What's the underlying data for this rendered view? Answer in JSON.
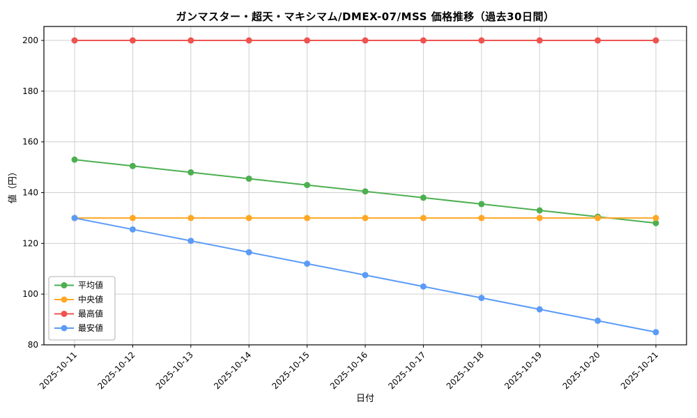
{
  "chart": {
    "title": "ガンマスター・超天・マキシマム/DMEX-07/MSS 価格推移（過去30日間）",
    "xlabel": "日付",
    "ylabel": "値（円）"
  },
  "chart_data": {
    "type": "line",
    "title": "ガンマスター・超天・マキシマム/DMEX-07/MSS 価格推移（過去30日間）",
    "xlabel": "日付",
    "ylabel": "値（円）",
    "categories": [
      "2025-10-11",
      "2025-10-12",
      "2025-10-13",
      "2025-10-14",
      "2025-10-15",
      "2025-10-16",
      "2025-10-17",
      "2025-10-18",
      "2025-10-19",
      "2025-10-20",
      "2025-10-21"
    ],
    "series": [
      {
        "name": "平均値",
        "color": "#4caf50",
        "values": [
          153,
          150.5,
          148,
          145.5,
          143,
          140.5,
          138,
          135.5,
          133,
          130.5,
          128
        ]
      },
      {
        "name": "中央値",
        "color": "#ffa726",
        "values": [
          130,
          130,
          130,
          130,
          130,
          130,
          130,
          130,
          130,
          130,
          130
        ]
      },
      {
        "name": "最高値",
        "color": "#ef5350",
        "values": [
          200,
          200,
          200,
          200,
          200,
          200,
          200,
          200,
          200,
          200,
          200
        ]
      },
      {
        "name": "最安値",
        "color": "#5b9bf8",
        "values": [
          130,
          125.5,
          121,
          116.5,
          112,
          107.5,
          103,
          98.5,
          94,
          89.5,
          85
        ]
      }
    ],
    "ylim": [
      80,
      205.5
    ],
    "yticks": [
      80,
      100,
      120,
      140,
      160,
      180,
      200
    ],
    "grid": true,
    "legend_position": "lower left",
    "xtick_rotation": 45,
    "grid_color": "#cfcfcf",
    "axis_color": "#000000"
  }
}
